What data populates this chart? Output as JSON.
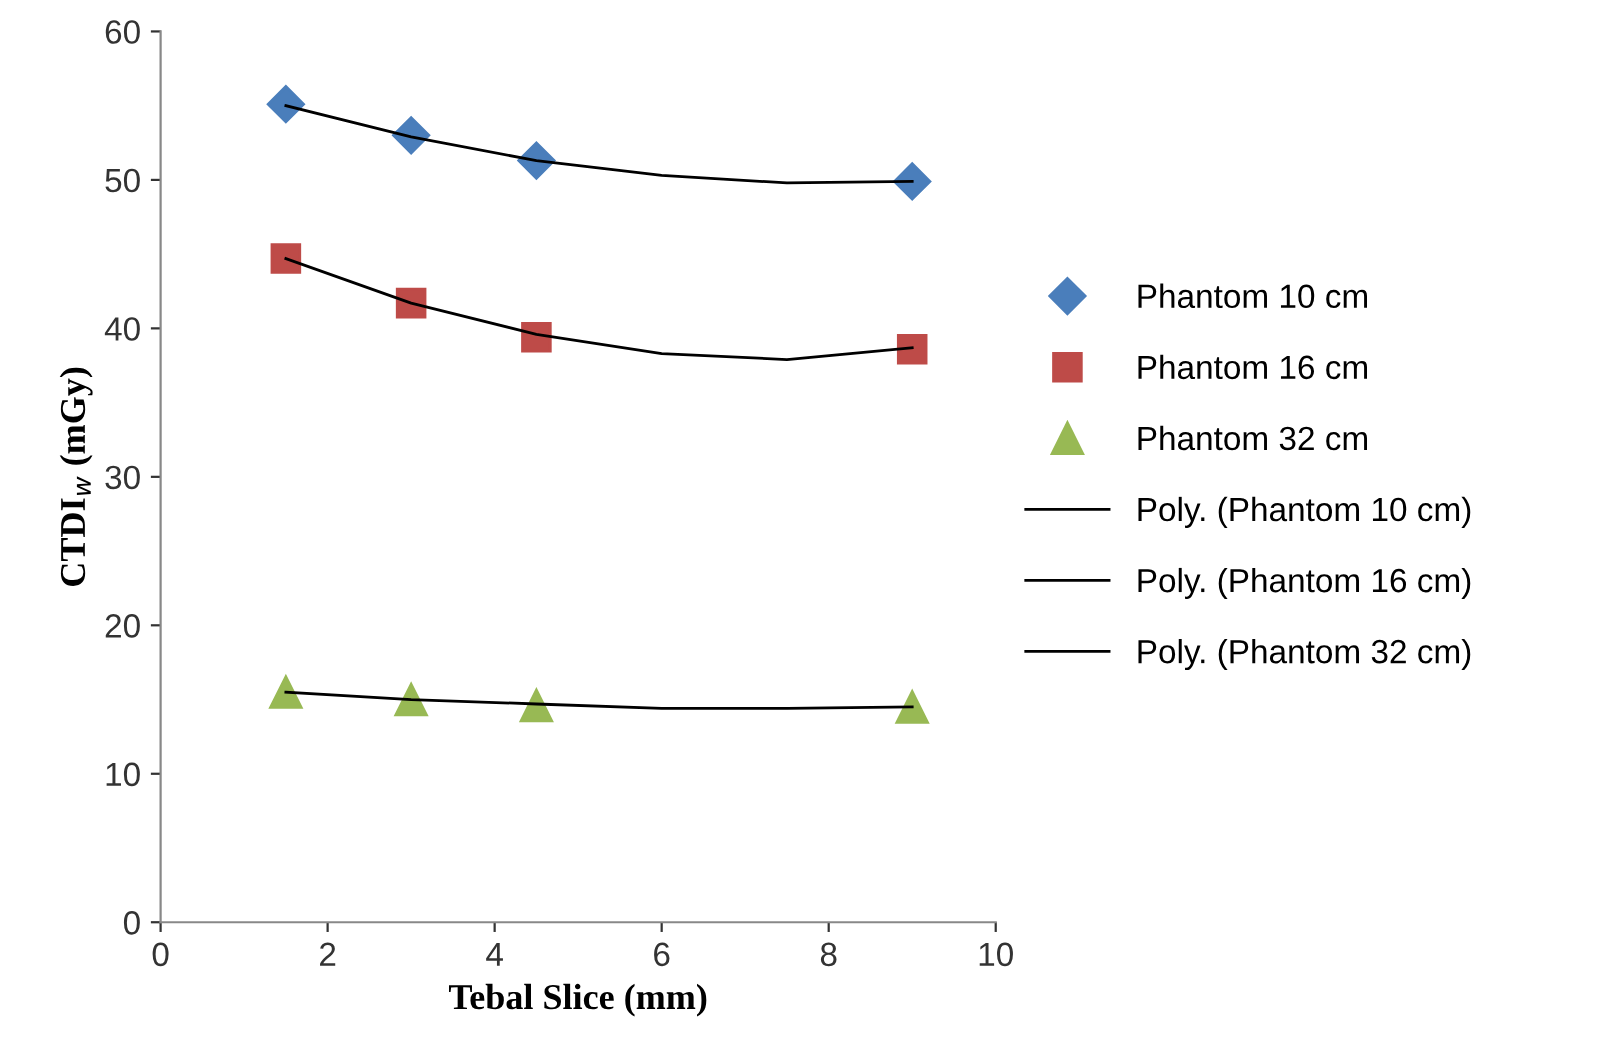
{
  "chart_data": {
    "type": "scatter",
    "xlabel": "Tebal Slice (mm)",
    "ylabel": "CTDI$_{w}$ (mGy)",
    "xlim": [
      0,
      10
    ],
    "xticks": [
      0,
      2,
      4,
      6,
      8,
      10
    ],
    "ylim": [
      0,
      60
    ],
    "yticks": [
      0,
      10,
      20,
      30,
      40,
      50,
      60
    ],
    "grid": false,
    "legend": "right",
    "series": [
      {
        "name": "Phantom 10 cm",
        "marker": "diamond",
        "color": "#4a7ebb",
        "x": [
          1.5,
          3,
          4.5,
          9
        ],
        "values": [
          55.1,
          53.0,
          51.3,
          49.9
        ]
      },
      {
        "name": "Phantom 16 cm",
        "marker": "square",
        "color": "#be4b48",
        "x": [
          1.5,
          3,
          4.5,
          9
        ],
        "values": [
          44.7,
          41.7,
          39.4,
          38.6
        ]
      },
      {
        "name": "Phantom 32 cm",
        "marker": "triangle",
        "color": "#98b954",
        "x": [
          1.5,
          3,
          4.5,
          9
        ],
        "values": [
          15.5,
          15.0,
          14.6,
          14.5
        ]
      },
      {
        "name": "Poly. (Phantom 10 cm)",
        "type": "line",
        "line_style": "solid",
        "color": "#000000",
        "x": [
          1.5,
          3,
          4.5,
          6,
          7.5,
          9
        ],
        "values": [
          55.0,
          52.9,
          51.3,
          50.3,
          49.8,
          49.9
        ]
      },
      {
        "name": "Poly. (Phantom 16 cm)",
        "type": "line",
        "line_style": "solid",
        "color": "#000000",
        "x": [
          1.5,
          3,
          4.5,
          6,
          7.5,
          9
        ],
        "values": [
          44.7,
          41.7,
          39.6,
          38.3,
          37.9,
          38.7
        ]
      },
      {
        "name": "Poly. (Phantom 32 cm)",
        "type": "line",
        "line_style": "solid",
        "color": "#000000",
        "x": [
          1.5,
          3,
          4.5,
          6,
          7.5,
          9
        ],
        "values": [
          15.5,
          15.0,
          14.7,
          14.4,
          14.4,
          14.5
        ]
      }
    ]
  }
}
